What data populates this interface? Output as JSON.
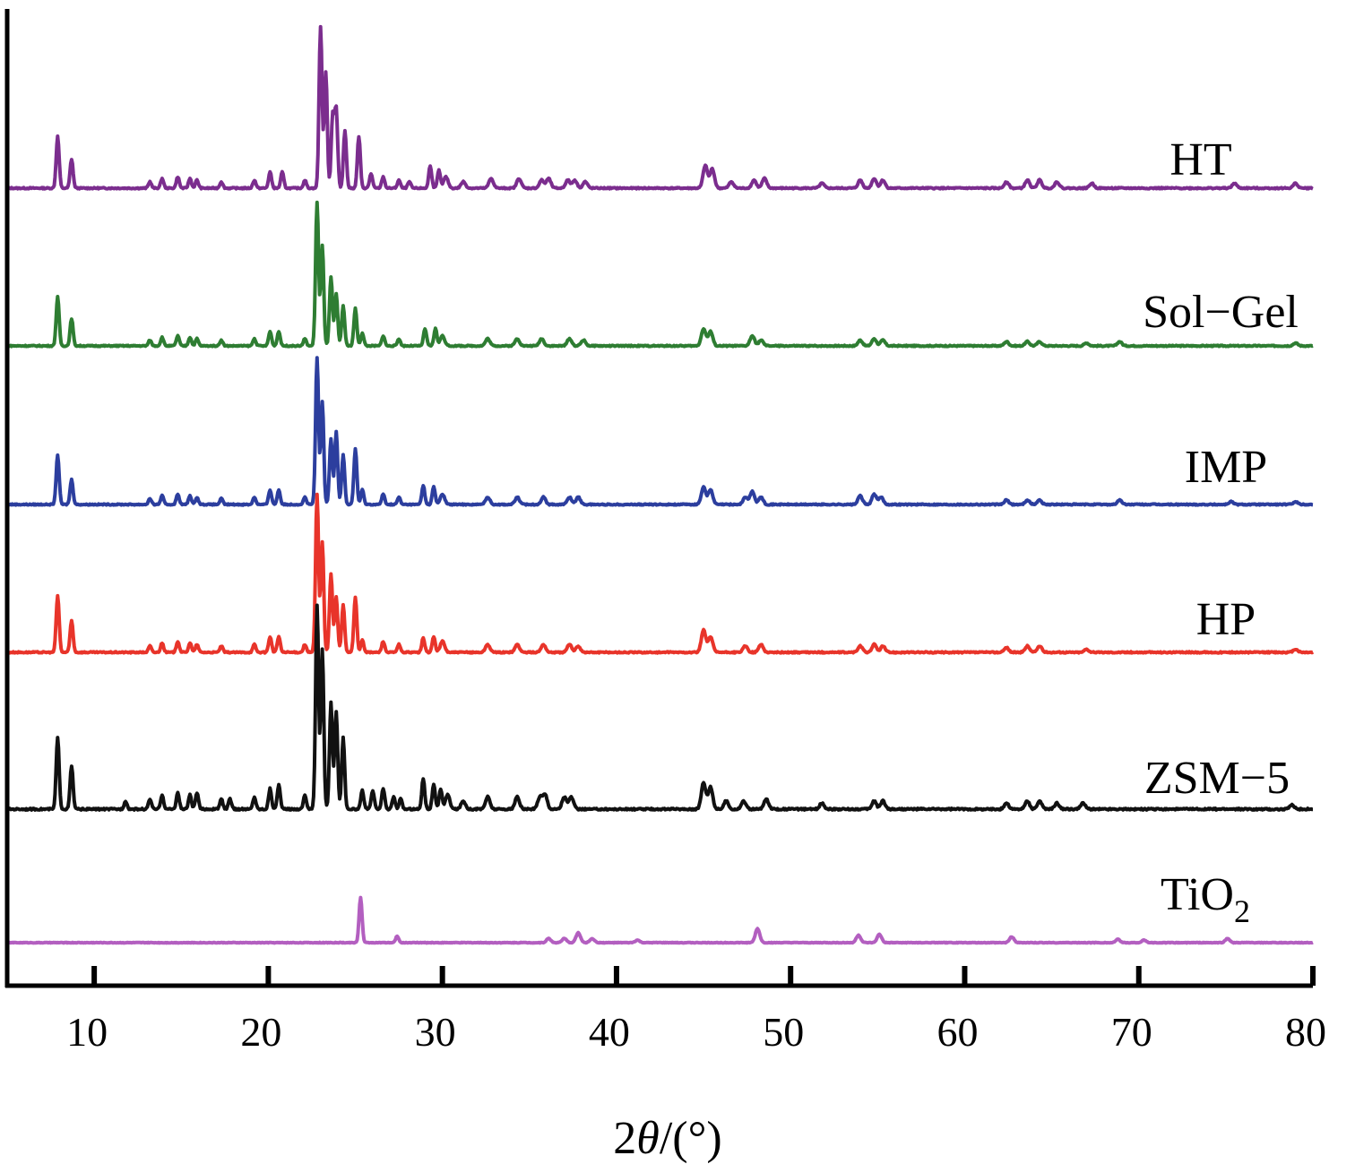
{
  "chart_data": {
    "type": "line",
    "xlabel_prefix": "2",
    "xlabel_symbol": "θ",
    "xlabel_suffix": "/(°)",
    "ylabel": "",
    "xlim": [
      5,
      80
    ],
    "x_ticks": [
      10,
      20,
      30,
      40,
      50,
      60,
      70,
      80
    ],
    "y_axis_ticks": false,
    "grid": false,
    "series": [
      {
        "name": "HT",
        "color": "#7b2d8e",
        "peaks": [
          [
            7.9,
            0.32
          ],
          [
            8.7,
            0.18
          ],
          [
            13.2,
            0.04
          ],
          [
            13.9,
            0.06
          ],
          [
            14.8,
            0.07
          ],
          [
            15.5,
            0.06
          ],
          [
            15.9,
            0.05
          ],
          [
            17.3,
            0.04
          ],
          [
            19.2,
            0.05
          ],
          [
            20.1,
            0.1
          ],
          [
            20.8,
            0.1
          ],
          [
            22.1,
            0.05
          ],
          [
            23.0,
            1.0
          ],
          [
            23.3,
            0.72
          ],
          [
            23.7,
            0.45
          ],
          [
            23.9,
            0.48
          ],
          [
            24.4,
            0.36
          ],
          [
            25.2,
            0.32
          ],
          [
            25.9,
            0.09
          ],
          [
            26.6,
            0.07
          ],
          [
            27.5,
            0.05
          ],
          [
            28.1,
            0.04
          ],
          [
            29.3,
            0.14
          ],
          [
            29.8,
            0.11
          ],
          [
            30.2,
            0.07
          ],
          [
            31.2,
            0.04
          ],
          [
            32.8,
            0.06
          ],
          [
            34.4,
            0.06
          ],
          [
            35.7,
            0.05
          ],
          [
            36.1,
            0.06
          ],
          [
            37.2,
            0.05
          ],
          [
            37.6,
            0.05
          ],
          [
            38.2,
            0.04
          ],
          [
            45.1,
            0.14
          ],
          [
            45.5,
            0.12
          ],
          [
            46.6,
            0.04
          ],
          [
            47.9,
            0.05
          ],
          [
            48.5,
            0.06
          ],
          [
            51.8,
            0.03
          ],
          [
            54.0,
            0.05
          ],
          [
            54.8,
            0.06
          ],
          [
            55.3,
            0.05
          ],
          [
            62.4,
            0.04
          ],
          [
            63.6,
            0.05
          ],
          [
            64.3,
            0.05
          ],
          [
            65.3,
            0.04
          ],
          [
            67.3,
            0.03
          ],
          [
            75.5,
            0.03
          ],
          [
            79.0,
            0.03
          ]
        ]
      },
      {
        "name": "Sol−Gel",
        "color": "#2e7d32",
        "peaks": [
          [
            7.9,
            0.34
          ],
          [
            8.7,
            0.19
          ],
          [
            13.2,
            0.04
          ],
          [
            13.9,
            0.06
          ],
          [
            14.8,
            0.07
          ],
          [
            15.5,
            0.06
          ],
          [
            15.9,
            0.05
          ],
          [
            17.3,
            0.04
          ],
          [
            19.2,
            0.05
          ],
          [
            20.1,
            0.1
          ],
          [
            20.6,
            0.1
          ],
          [
            22.1,
            0.05
          ],
          [
            22.8,
            1.0
          ],
          [
            23.1,
            0.7
          ],
          [
            23.6,
            0.48
          ],
          [
            23.9,
            0.36
          ],
          [
            24.3,
            0.28
          ],
          [
            25.0,
            0.26
          ],
          [
            25.4,
            0.09
          ],
          [
            26.6,
            0.07
          ],
          [
            27.5,
            0.05
          ],
          [
            29.0,
            0.12
          ],
          [
            29.6,
            0.12
          ],
          [
            30.0,
            0.07
          ],
          [
            32.6,
            0.05
          ],
          [
            34.3,
            0.05
          ],
          [
            35.7,
            0.05
          ],
          [
            37.3,
            0.05
          ],
          [
            38.1,
            0.04
          ],
          [
            45.0,
            0.12
          ],
          [
            45.4,
            0.1
          ],
          [
            47.8,
            0.07
          ],
          [
            48.3,
            0.04
          ],
          [
            54.0,
            0.04
          ],
          [
            54.8,
            0.05
          ],
          [
            55.3,
            0.04
          ],
          [
            62.4,
            0.03
          ],
          [
            63.6,
            0.03
          ],
          [
            64.3,
            0.03
          ],
          [
            67.0,
            0.02
          ],
          [
            68.9,
            0.03
          ],
          [
            79.0,
            0.02
          ]
        ]
      },
      {
        "name": "IMP",
        "color": "#2c3e9e",
        "peaks": [
          [
            7.9,
            0.34
          ],
          [
            8.7,
            0.17
          ],
          [
            13.2,
            0.04
          ],
          [
            13.9,
            0.06
          ],
          [
            14.8,
            0.07
          ],
          [
            15.5,
            0.06
          ],
          [
            15.9,
            0.05
          ],
          [
            17.3,
            0.04
          ],
          [
            19.2,
            0.05
          ],
          [
            20.1,
            0.1
          ],
          [
            20.6,
            0.1
          ],
          [
            22.1,
            0.05
          ],
          [
            22.8,
            1.0
          ],
          [
            23.1,
            0.7
          ],
          [
            23.6,
            0.45
          ],
          [
            23.9,
            0.5
          ],
          [
            24.3,
            0.34
          ],
          [
            25.0,
            0.38
          ],
          [
            25.4,
            0.1
          ],
          [
            26.6,
            0.07
          ],
          [
            27.5,
            0.05
          ],
          [
            28.9,
            0.13
          ],
          [
            29.5,
            0.12
          ],
          [
            30.0,
            0.07
          ],
          [
            32.6,
            0.05
          ],
          [
            34.3,
            0.05
          ],
          [
            35.8,
            0.05
          ],
          [
            37.3,
            0.05
          ],
          [
            37.8,
            0.05
          ],
          [
            45.0,
            0.12
          ],
          [
            45.4,
            0.1
          ],
          [
            47.4,
            0.05
          ],
          [
            47.8,
            0.09
          ],
          [
            48.3,
            0.05
          ],
          [
            54.0,
            0.06
          ],
          [
            54.8,
            0.07
          ],
          [
            55.2,
            0.05
          ],
          [
            62.4,
            0.03
          ],
          [
            63.6,
            0.03
          ],
          [
            64.3,
            0.03
          ],
          [
            68.9,
            0.03
          ],
          [
            75.3,
            0.02
          ],
          [
            79.0,
            0.02
          ]
        ]
      },
      {
        "name": "HP",
        "color": "#e8342a",
        "peaks": [
          [
            7.9,
            0.36
          ],
          [
            8.7,
            0.2
          ],
          [
            13.2,
            0.04
          ],
          [
            13.9,
            0.06
          ],
          [
            14.8,
            0.07
          ],
          [
            15.5,
            0.06
          ],
          [
            15.9,
            0.05
          ],
          [
            17.3,
            0.04
          ],
          [
            19.2,
            0.05
          ],
          [
            20.1,
            0.1
          ],
          [
            20.6,
            0.1
          ],
          [
            22.1,
            0.05
          ],
          [
            22.8,
            1.0
          ],
          [
            23.1,
            0.7
          ],
          [
            23.6,
            0.5
          ],
          [
            23.9,
            0.35
          ],
          [
            24.3,
            0.3
          ],
          [
            25.0,
            0.35
          ],
          [
            25.4,
            0.08
          ],
          [
            26.6,
            0.07
          ],
          [
            27.5,
            0.05
          ],
          [
            28.9,
            0.09
          ],
          [
            29.5,
            0.1
          ],
          [
            30.0,
            0.07
          ],
          [
            32.6,
            0.05
          ],
          [
            34.3,
            0.05
          ],
          [
            35.8,
            0.05
          ],
          [
            37.3,
            0.05
          ],
          [
            37.8,
            0.04
          ],
          [
            45.0,
            0.14
          ],
          [
            45.4,
            0.1
          ],
          [
            47.4,
            0.04
          ],
          [
            48.3,
            0.05
          ],
          [
            54.0,
            0.04
          ],
          [
            54.8,
            0.05
          ],
          [
            55.3,
            0.04
          ],
          [
            62.4,
            0.03
          ],
          [
            63.6,
            0.04
          ],
          [
            64.3,
            0.04
          ],
          [
            67.0,
            0.02
          ],
          [
            79.0,
            0.02
          ]
        ]
      },
      {
        "name": "ZSM−5",
        "color": "#111111",
        "peaks": [
          [
            7.9,
            0.35
          ],
          [
            8.7,
            0.21
          ],
          [
            11.8,
            0.04
          ],
          [
            13.2,
            0.05
          ],
          [
            13.9,
            0.07
          ],
          [
            14.8,
            0.08
          ],
          [
            15.5,
            0.07
          ],
          [
            15.9,
            0.08
          ],
          [
            17.3,
            0.05
          ],
          [
            17.8,
            0.05
          ],
          [
            19.2,
            0.06
          ],
          [
            20.1,
            0.1
          ],
          [
            20.6,
            0.12
          ],
          [
            22.1,
            0.07
          ],
          [
            22.8,
            1.0
          ],
          [
            23.1,
            0.78
          ],
          [
            23.6,
            0.52
          ],
          [
            23.9,
            0.48
          ],
          [
            24.3,
            0.35
          ],
          [
            25.4,
            0.09
          ],
          [
            26.0,
            0.09
          ],
          [
            26.6,
            0.1
          ],
          [
            27.2,
            0.06
          ],
          [
            27.6,
            0.05
          ],
          [
            28.9,
            0.15
          ],
          [
            29.5,
            0.12
          ],
          [
            29.9,
            0.1
          ],
          [
            30.3,
            0.07
          ],
          [
            31.2,
            0.04
          ],
          [
            32.6,
            0.06
          ],
          [
            34.3,
            0.06
          ],
          [
            35.6,
            0.06
          ],
          [
            35.9,
            0.07
          ],
          [
            37.0,
            0.06
          ],
          [
            37.4,
            0.06
          ],
          [
            45.0,
            0.13
          ],
          [
            45.4,
            0.11
          ],
          [
            46.3,
            0.04
          ],
          [
            47.3,
            0.04
          ],
          [
            48.6,
            0.05
          ],
          [
            51.8,
            0.03
          ],
          [
            54.8,
            0.04
          ],
          [
            55.3,
            0.04
          ],
          [
            62.4,
            0.03
          ],
          [
            63.6,
            0.04
          ],
          [
            64.3,
            0.04
          ],
          [
            65.3,
            0.03
          ],
          [
            66.8,
            0.03
          ],
          [
            78.8,
            0.02
          ]
        ]
      },
      {
        "name": "TiO",
        "name_sub": "2",
        "color": "#b35fc0",
        "peaks": [
          [
            25.3,
            0.55
          ],
          [
            27.4,
            0.08
          ],
          [
            36.1,
            0.05
          ],
          [
            37.0,
            0.05
          ],
          [
            37.8,
            0.12
          ],
          [
            38.6,
            0.05
          ],
          [
            41.2,
            0.03
          ],
          [
            48.1,
            0.17
          ],
          [
            53.9,
            0.09
          ],
          [
            55.1,
            0.1
          ],
          [
            62.7,
            0.07
          ],
          [
            68.8,
            0.04
          ],
          [
            70.3,
            0.03
          ],
          [
            75.1,
            0.05
          ]
        ]
      }
    ],
    "legend_placement": "inline-right"
  }
}
